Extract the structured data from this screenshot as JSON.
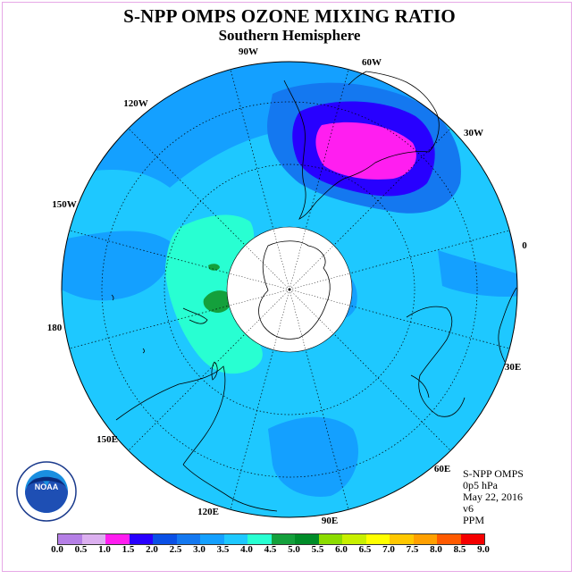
{
  "title": "S-NPP OMPS OZONE MIXING RATIO",
  "subtitle": "Southern Hemisphere",
  "lon_labels": {
    "l90w": "90W",
    "l60w": "60W",
    "l120w": "120W",
    "l30w": "30W",
    "l150w": "150W",
    "l0": "0",
    "l180": "180",
    "l30e": "30E",
    "l150e": "150E",
    "l60e": "60E",
    "l120e": "120E",
    "l90e": "90E"
  },
  "info": {
    "instrument": "S-NPP OMPS",
    "level": "0p5 hPa",
    "date": "May 22, 2016",
    "version": "v6",
    "units": "PPM"
  },
  "logo": {
    "text": "NOAA",
    "ring_text": "NATIONAL OCEANIC AND ATMOSPHERIC ADMINISTRATION · U.S. DEPARTMENT OF COMMERCE"
  },
  "colorbar": {
    "ticks": [
      "0.0",
      "0.5",
      "1.0",
      "1.5",
      "2.0",
      "2.5",
      "3.0",
      "3.5",
      "4.0",
      "4.5",
      "5.0",
      "5.5",
      "6.0",
      "6.5",
      "7.0",
      "7.5",
      "8.0",
      "8.5",
      "9.0"
    ],
    "colors": [
      "#b57fe6",
      "#dcb0f0",
      "#ff1ef0",
      "#2800ff",
      "#0a50e6",
      "#1478f0",
      "#14a0ff",
      "#1ec8ff",
      "#28ffd2",
      "#14a03c",
      "#008c28",
      "#8cdc00",
      "#c8f000",
      "#ffff00",
      "#ffc800",
      "#ffa000",
      "#ff5a00",
      "#f50000",
      "#784b28"
    ]
  }
}
